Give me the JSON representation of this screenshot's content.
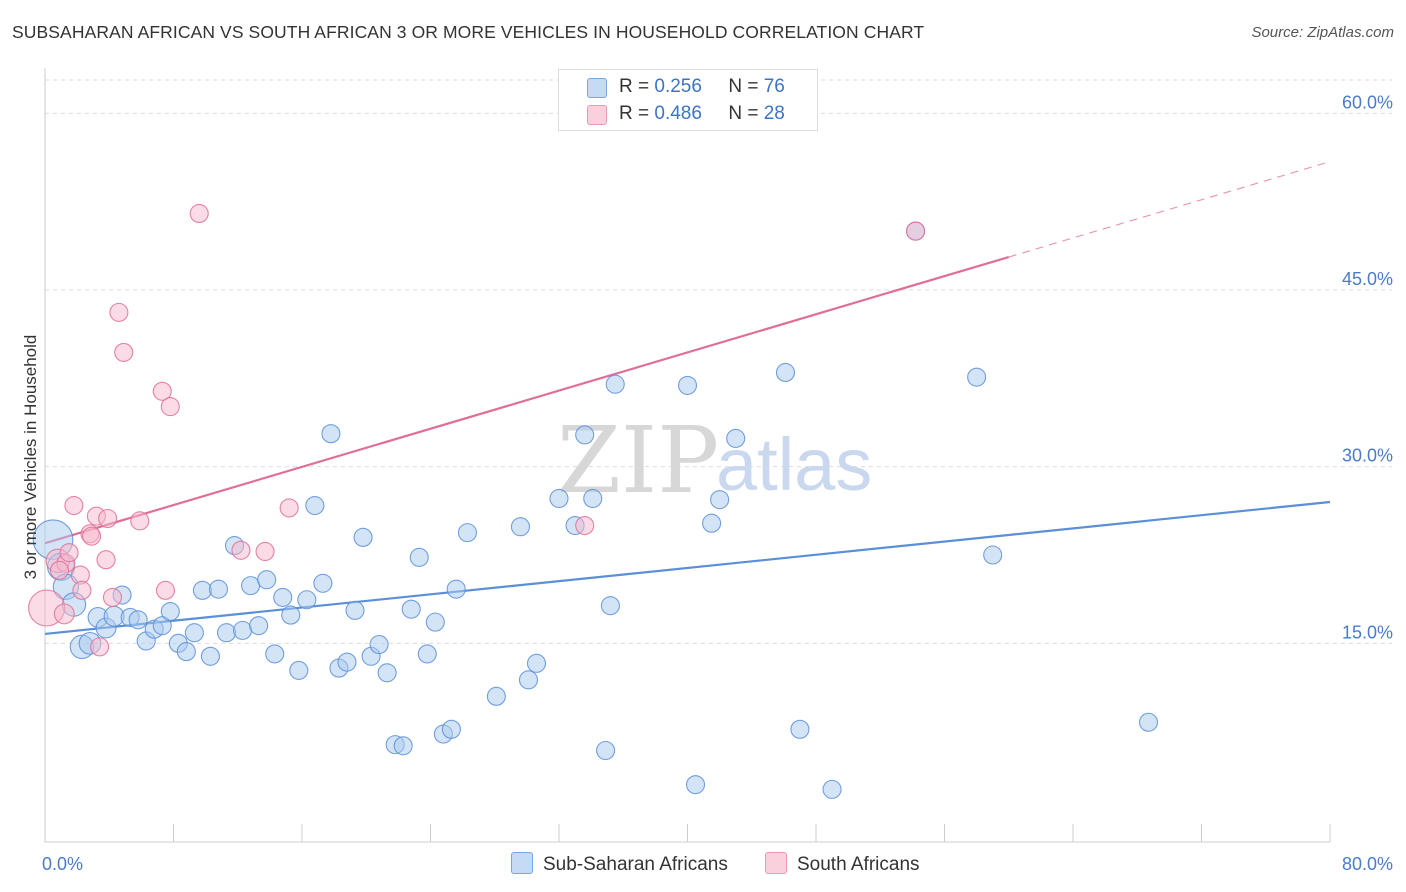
{
  "title": "SUBSAHARAN AFRICAN VS SOUTH AFRICAN 3 OR MORE VEHICLES IN HOUSEHOLD CORRELATION CHART",
  "source": "Source: ZipAtlas.com",
  "watermark": {
    "zip": "ZIP",
    "atlas": "atlas"
  },
  "legend": {
    "r_label": "R =",
    "n_label": "N =",
    "series": [
      {
        "r": "0.256",
        "n": "76",
        "fill": "#a9c9f0",
        "stroke": "#6f9fdc"
      },
      {
        "r": "0.486",
        "n": "28",
        "fill": "#f8b8cb",
        "stroke": "#e88aa8"
      }
    ]
  },
  "bottom_legend": [
    "Sub-Saharan Africans",
    "South Africans"
  ],
  "chart_data": {
    "type": "scatter",
    "title": "SUBSAHARAN AFRICAN VS SOUTH AFRICAN 3 OR MORE VEHICLES IN HOUSEHOLD CORRELATION CHART",
    "ylabel": "3 or more Vehicles in Household",
    "xlabel": "",
    "xlim": [
      0,
      80
    ],
    "ylim": [
      0,
      63
    ],
    "x_ticks": [
      "0.0%",
      "80.0%"
    ],
    "y_ticks": [
      {
        "value": 15,
        "label": "15.0%"
      },
      {
        "value": 30,
        "label": "30.0%"
      },
      {
        "value": 45,
        "label": "45.0%"
      },
      {
        "value": 60,
        "label": "60.0%"
      }
    ],
    "grid": true,
    "legend_position": "top-center",
    "series": [
      {
        "name": "Sub-Saharan Africans",
        "color": "#5b8fd8",
        "fill": "#a9c9f0",
        "trend": {
          "x": [
            0,
            80
          ],
          "y": [
            15.8,
            27.0
          ]
        },
        "points": [
          [
            0.5,
            23.8,
            2.2
          ],
          [
            1.0,
            21.5,
            1.5
          ],
          [
            1.3,
            19.8,
            1.4
          ],
          [
            1.8,
            18.3,
            1.3
          ],
          [
            2.3,
            14.7,
            1.3
          ],
          [
            2.8,
            15.0,
            1.2
          ],
          [
            3.3,
            17.2,
            1.1
          ],
          [
            3.8,
            16.3,
            1.1
          ],
          [
            4.3,
            17.3,
            1.1
          ],
          [
            4.8,
            19.1,
            1.0
          ],
          [
            5.3,
            17.2,
            1.0
          ],
          [
            5.8,
            17.0,
            1.0
          ],
          [
            6.3,
            15.2,
            1.0
          ],
          [
            6.8,
            16.2,
            1.0
          ],
          [
            7.3,
            16.5,
            1.0
          ],
          [
            7.8,
            17.7,
            1.0
          ],
          [
            8.3,
            15.0,
            1.0
          ],
          [
            8.8,
            14.3,
            1.0
          ],
          [
            9.3,
            15.9,
            1.0
          ],
          [
            9.8,
            19.5,
            1.0
          ],
          [
            10.3,
            13.9,
            1.0
          ],
          [
            10.8,
            19.6,
            1.0
          ],
          [
            11.3,
            15.9,
            1.0
          ],
          [
            11.8,
            23.3,
            1.0
          ],
          [
            12.3,
            16.1,
            1.0
          ],
          [
            12.8,
            19.9,
            1.0
          ],
          [
            13.3,
            16.5,
            1.0
          ],
          [
            13.8,
            20.4,
            1.0
          ],
          [
            14.3,
            14.1,
            1.0
          ],
          [
            14.8,
            18.9,
            1.0
          ],
          [
            15.3,
            17.4,
            1.0
          ],
          [
            15.8,
            12.7,
            1.0
          ],
          [
            16.3,
            18.7,
            1.0
          ],
          [
            16.8,
            26.7,
            1.0
          ],
          [
            17.3,
            20.1,
            1.0
          ],
          [
            17.8,
            32.8,
            1.0
          ],
          [
            18.3,
            12.9,
            1.0
          ],
          [
            18.8,
            13.4,
            1.0
          ],
          [
            19.3,
            17.8,
            1.0
          ],
          [
            19.8,
            24.0,
            1.0
          ],
          [
            20.3,
            13.9,
            1.0
          ],
          [
            20.8,
            14.9,
            1.0
          ],
          [
            21.3,
            12.5,
            1.0
          ],
          [
            21.8,
            6.4,
            1.0
          ],
          [
            22.3,
            6.3,
            1.0
          ],
          [
            22.8,
            17.9,
            1.0
          ],
          [
            23.3,
            22.3,
            1.0
          ],
          [
            23.8,
            14.1,
            1.0
          ],
          [
            24.3,
            16.8,
            1.0
          ],
          [
            24.8,
            7.3,
            1.0
          ],
          [
            25.3,
            7.7,
            1.0
          ],
          [
            25.6,
            19.6,
            1.0
          ],
          [
            26.3,
            24.4,
            1.0
          ],
          [
            28.1,
            10.5,
            1.0
          ],
          [
            29.6,
            24.9,
            1.0
          ],
          [
            30.1,
            11.9,
            1.0
          ],
          [
            30.6,
            13.3,
            1.0
          ],
          [
            32.0,
            27.3,
            1.0
          ],
          [
            33.0,
            25.0,
            1.0
          ],
          [
            33.6,
            32.7,
            1.0
          ],
          [
            34.1,
            27.3,
            1.0
          ],
          [
            34.9,
            5.9,
            1.0
          ],
          [
            35.2,
            18.2,
            1.0
          ],
          [
            35.5,
            37.0,
            1.0
          ],
          [
            40.0,
            36.9,
            1.0
          ],
          [
            40.5,
            3.0,
            1.0
          ],
          [
            41.5,
            25.2,
            1.0
          ],
          [
            42.0,
            27.2,
            1.0
          ],
          [
            43.0,
            32.4,
            1.0
          ],
          [
            46.1,
            38.0,
            1.0
          ],
          [
            47.0,
            7.7,
            1.0
          ],
          [
            49.0,
            2.6,
            1.0
          ],
          [
            54.2,
            50.0,
            1.0
          ],
          [
            58.0,
            37.6,
            1.0
          ],
          [
            59.0,
            22.5,
            1.0
          ],
          [
            68.7,
            8.3,
            1.0
          ]
        ]
      },
      {
        "name": "South Africans",
        "color": "#e06f97",
        "fill": "#f8b8cb",
        "trend": {
          "x": [
            0,
            60
          ],
          "y": [
            23.5,
            47.8
          ]
        },
        "trend_dashed": {
          "x": [
            60,
            80
          ],
          "y": [
            47.8,
            55.9
          ]
        },
        "points": [
          [
            0.1,
            18.0,
            2.0
          ],
          [
            0.8,
            22.0,
            1.3
          ],
          [
            1.2,
            17.5,
            1.1
          ],
          [
            1.3,
            21.8,
            1.0
          ],
          [
            1.8,
            26.7,
            1.0
          ],
          [
            2.2,
            20.8,
            1.0
          ],
          [
            2.3,
            19.5,
            1.0
          ],
          [
            2.8,
            24.3,
            1.0
          ],
          [
            3.2,
            25.8,
            1.0
          ],
          [
            3.4,
            14.7,
            1.0
          ],
          [
            3.8,
            22.1,
            1.0
          ],
          [
            3.9,
            25.6,
            1.0
          ],
          [
            4.2,
            18.9,
            1.0
          ],
          [
            4.6,
            43.1,
            1.0
          ],
          [
            4.9,
            39.7,
            1.0
          ],
          [
            5.9,
            25.4,
            1.0
          ],
          [
            7.3,
            36.4,
            1.0
          ],
          [
            7.5,
            19.5,
            1.0
          ],
          [
            7.8,
            35.1,
            1.0
          ],
          [
            9.6,
            51.5,
            1.0
          ],
          [
            12.2,
            22.9,
            1.0
          ],
          [
            13.7,
            22.8,
            1.0
          ],
          [
            15.2,
            26.5,
            1.0
          ],
          [
            33.6,
            25.0,
            1.0
          ],
          [
            0.9,
            21.2,
            1.0
          ],
          [
            2.9,
            24.1,
            1.0
          ],
          [
            1.5,
            22.7,
            1.0
          ],
          [
            54.2,
            50.0,
            1.0
          ]
        ]
      }
    ]
  }
}
